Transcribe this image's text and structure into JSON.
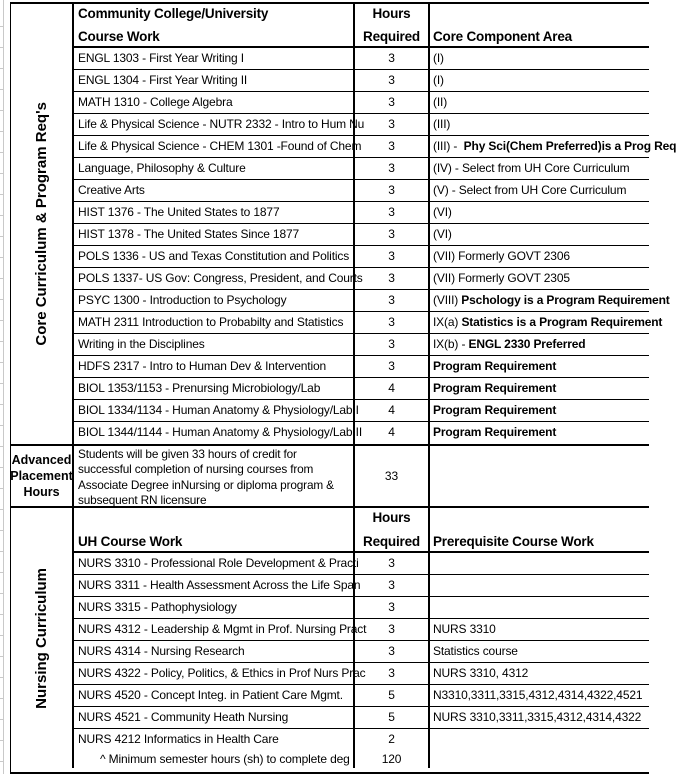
{
  "colors": {
    "border": "#000000",
    "gridline": "#c9c9c9",
    "background": "#ffffff",
    "text": "#000000"
  },
  "core": {
    "label": "Core Curriculum & Program Req's",
    "header": {
      "line1": "Community College/University",
      "line2": "Course Work",
      "hours1": "Hours",
      "hours2": "Required",
      "notes": "Core Component Area"
    },
    "rows": [
      {
        "course": "ENGL 1303 - First Year Writing I",
        "hours": "3",
        "note": "(I)",
        "note_bold": ""
      },
      {
        "course": "ENGL 1304 - First Year Writing II",
        "hours": "3",
        "note": "(I)",
        "note_bold": ""
      },
      {
        "course": "MATH 1310 - College Algebra",
        "hours": "3",
        "note": "(II)",
        "note_bold": ""
      },
      {
        "course": "Life & Physical Science - NUTR 2332 - Intro to Hum Nu",
        "hours": "3",
        "note": "(III)",
        "note_bold": ""
      },
      {
        "course": "Life & Physical Science - CHEM 1301 -Found of Chem",
        "hours": "3",
        "note": "(III) -  ",
        "note_bold": "Phy Sci(Chem Preferred)is a Prog Req"
      },
      {
        "course": "Language, Philosophy & Culture",
        "hours": "3",
        "note": "(IV) - Select from UH Core Curriculum",
        "note_bold": ""
      },
      {
        "course": "Creative Arts",
        "hours": "3",
        "note": "(V) - Select from UH Core Curriculum",
        "note_bold": ""
      },
      {
        "course": "HIST 1376 - The United States to 1877",
        "hours": "3",
        "note": "(VI)",
        "note_bold": ""
      },
      {
        "course": "HIST 1378 - The United States Since 1877",
        "hours": "3",
        "note": "(VI)",
        "note_bold": ""
      },
      {
        "course": "POLS 1336 - US and Texas Constitution and Politics",
        "hours": "3",
        "note": "(VII) Formerly GOVT 2306",
        "note_bold": ""
      },
      {
        "course": "POLS 1337- US Gov: Congress, President, and Courts",
        "hours": "3",
        "note": "(VII) Formerly GOVT 2305",
        "note_bold": ""
      },
      {
        "course": "PSYC 1300 - Introduction to Psychology",
        "hours": "3",
        "note": "(VIII) ",
        "note_bold": "Pschology is a Program Requirement"
      },
      {
        "course": "MATH 2311 Introduction to Probabilty and Statistics",
        "hours": "3",
        "note": "IX(a) ",
        "note_bold": "Statistics is a Program Requirement"
      },
      {
        "course": "Writing in the Disciplines",
        "hours": "3",
        "note": "IX(b) - ",
        "note_bold": "ENGL 2330 Preferred"
      },
      {
        "course": "HDFS 2317 - Intro to Human Dev & Intervention",
        "hours": "3",
        "note": "",
        "note_bold": "Program Requirement"
      },
      {
        "course": "BIOL 1353/1153 - Prenursing Microbiology/Lab",
        "hours": "4",
        "note": "",
        "note_bold": "Program Requirement"
      },
      {
        "course": "BIOL 1334/1134 - Human Anatomy & Physiology/Lab I",
        "hours": "4",
        "note": "",
        "note_bold": "Program Requirement"
      },
      {
        "course": "BIOL 1344/1144 - Human Anatomy & Physiology/Lab II",
        "hours": "4",
        "note": "",
        "note_bold": "Program Requirement"
      }
    ]
  },
  "advanced_placement": {
    "label": "Advanced Placement Hours",
    "text": "Students will be given 33 hours of credit for successful completion of nursing courses from Associate Degree inNursing or diploma program & subsequent RN licensure",
    "hours": "33"
  },
  "nursing": {
    "label": "Nursing Curriculum",
    "header": {
      "line1": "",
      "line2": "UH Course Work",
      "hours1": "Hours",
      "hours2": "Required",
      "notes": "Prerequisite Course Work"
    },
    "rows": [
      {
        "course": "NURS 3310 - Professional Role Development & Practi",
        "hours": "3",
        "note": "",
        "note_bold": ""
      },
      {
        "course": "NURS 3311 - Health Assessment Across the Life Span",
        "hours": "3",
        "note": "",
        "note_bold": ""
      },
      {
        "course": "NURS 3315 - Pathophysiology",
        "hours": "3",
        "note": "",
        "note_bold": ""
      },
      {
        "course": "NURS 4312 - Leadership & Mgmt in Prof. Nursing Pract",
        "hours": "3",
        "note": "NURS 3310",
        "note_bold": ""
      },
      {
        "course": "NURS 4314 - Nursing Research",
        "hours": "3",
        "note": "Statistics course",
        "note_bold": ""
      },
      {
        "course": "NURS 4322 - Policy, Politics, & Ethics in Prof Nurs Prac",
        "hours": "3",
        "note": "NURS 3310, 4312",
        "note_bold": ""
      },
      {
        "course": "NURS 4520 - Concept Integ. in Patient Care Mgmt.",
        "hours": "5",
        "note": "N3310,3311,3315,4312,4314,4322,4521",
        "note_bold": ""
      },
      {
        "course": "NURS 4521 - Community Heath Nursing",
        "hours": "5",
        "note": "NURS 3310,3311,3315,4312,4314,4322",
        "note_bold": ""
      },
      {
        "course": "NURS 4212 Informatics in Health Care",
        "hours": "2",
        "note": "",
        "note_bold": ""
      }
    ],
    "footer": {
      "course": "^ Minimum semester hours (sh) to complete deg",
      "hours": "120",
      "note": ""
    }
  }
}
